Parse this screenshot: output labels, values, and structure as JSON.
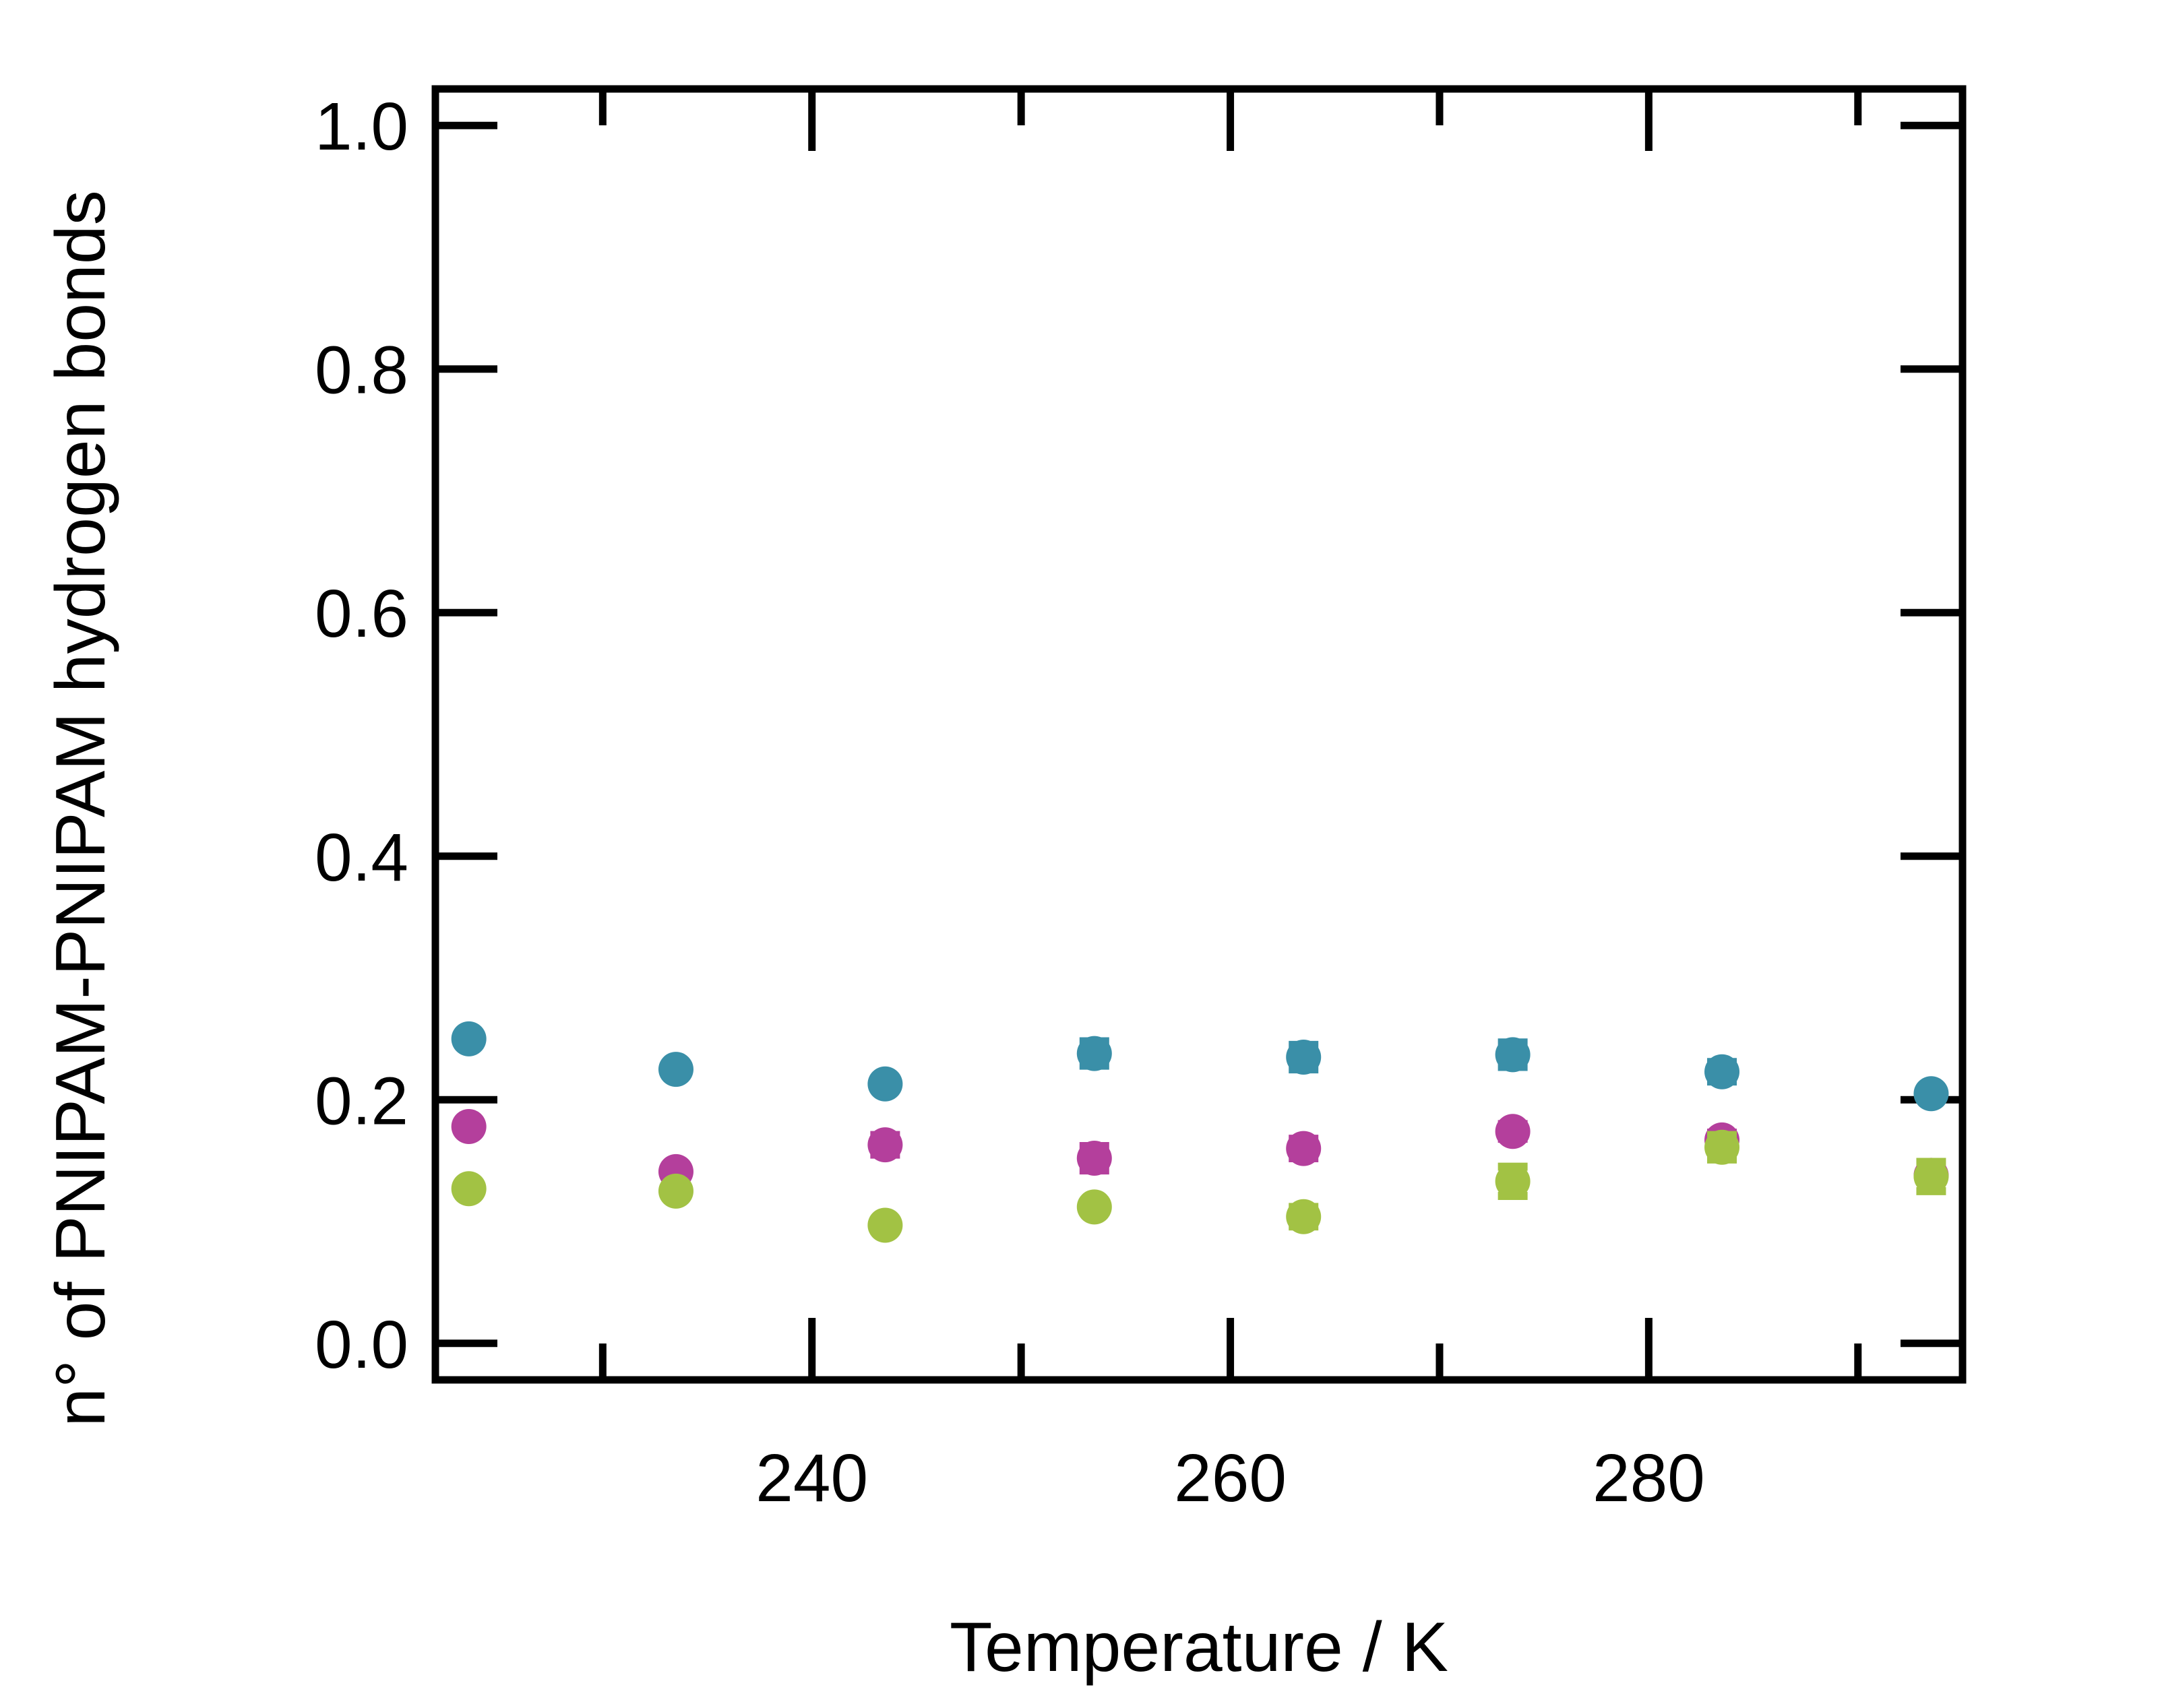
{
  "chart_data": {
    "type": "scatter",
    "title": "",
    "xlabel": "Temperature / K",
    "ylabel": "n° of PNIPAM-PNIPAM hydrogen bonds",
    "xlim": [
      222,
      295
    ],
    "ylim": [
      -0.03,
      1.03
    ],
    "x_ticks": [
      240,
      260,
      280
    ],
    "x_minor_ticks": [
      230,
      250,
      270,
      290
    ],
    "y_ticks": [
      0.0,
      0.2,
      0.4,
      0.6,
      0.8,
      1.0
    ],
    "y_tick_labels": [
      "0.0",
      "0.2",
      "0.4",
      "0.6",
      "0.8",
      "1.0"
    ],
    "grid": false,
    "legend": "none",
    "x": [
      223.6,
      233.5,
      243.5,
      253.5,
      263.5,
      273.5,
      283.5,
      293.5
    ],
    "series": [
      {
        "color": "#3a8fa8",
        "values": [
          0.25,
          0.225,
          0.213,
          0.238,
          0.235,
          0.237,
          0.223,
          0.205
        ],
        "errors": [
          0.004,
          0.004,
          0.004,
          0.01,
          0.01,
          0.01,
          0.008,
          0.004
        ]
      },
      {
        "color": "#b43f9c",
        "values": [
          0.178,
          0.141,
          0.163,
          0.152,
          0.16,
          0.174,
          0.167,
          0.138
        ],
        "errors": [
          0.004,
          0.004,
          0.008,
          0.01,
          0.008,
          0.006,
          0.006,
          0.004
        ]
      },
      {
        "color": "#a2c244",
        "values": [
          0.127,
          0.125,
          0.097,
          0.112,
          0.104,
          0.133,
          0.161,
          0.137
        ],
        "errors": [
          0.004,
          0.004,
          0.004,
          0.004,
          0.008,
          0.012,
          0.01,
          0.012
        ]
      }
    ]
  }
}
